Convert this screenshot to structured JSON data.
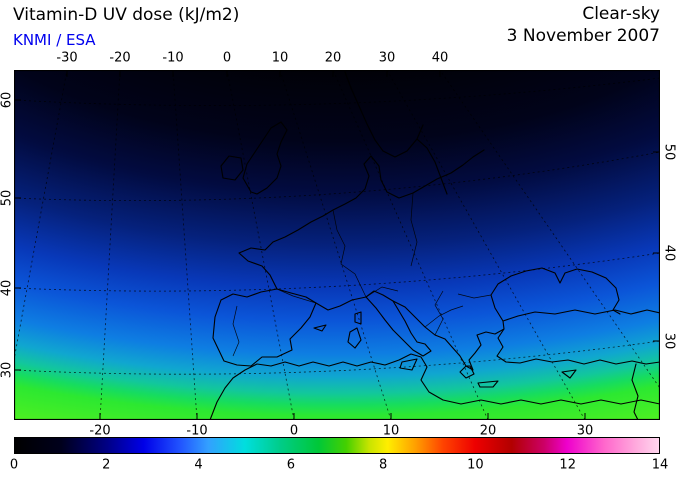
{
  "header": {
    "title": "Vitamin-D UV dose (kJ/m2)",
    "credit": "KNMI / ESA",
    "condition": "Clear-sky",
    "date": "3 November 2007"
  },
  "colors": {
    "credit_blue": "#0000ee",
    "text": "#000000",
    "background": "#ffffff"
  },
  "chart_data": {
    "type": "heatmap",
    "title": "Vitamin-D UV dose (kJ/m2)",
    "condition": "Clear-sky",
    "date": "3 November 2007",
    "source": "KNMI / ESA",
    "units": "kJ/m2",
    "region": "Europe and Mediterranean, approx. 30W-40E and 27N-72N",
    "colorbar": {
      "min": 0,
      "max": 14,
      "tick_labels": [
        "0",
        "2",
        "4",
        "6",
        "8",
        "10",
        "12",
        "14"
      ],
      "gradient_stops": [
        {
          "value": 0,
          "color": "#000000"
        },
        {
          "value": 1,
          "color": "#00001c"
        },
        {
          "value": 2,
          "color": "#000085"
        },
        {
          "value": 2.8,
          "color": "#0000e8"
        },
        {
          "value": 3.6,
          "color": "#2255ff"
        },
        {
          "value": 4.2,
          "color": "#33a0ff"
        },
        {
          "value": 5,
          "color": "#00dede"
        },
        {
          "value": 5.8,
          "color": "#00cc85"
        },
        {
          "value": 6.6,
          "color": "#00c838"
        },
        {
          "value": 7.2,
          "color": "#44d000"
        },
        {
          "value": 7.7,
          "color": "#c8e400"
        },
        {
          "value": 8.1,
          "color": "#ffee00"
        },
        {
          "value": 8.7,
          "color": "#ffa000"
        },
        {
          "value": 9.3,
          "color": "#ff4400"
        },
        {
          "value": 10,
          "color": "#ee0000"
        },
        {
          "value": 10.8,
          "color": "#b20000"
        },
        {
          "value": 11.5,
          "color": "#cc0066"
        },
        {
          "value": 12,
          "color": "#ee00cc"
        },
        {
          "value": 12.8,
          "color": "#ff66cc"
        },
        {
          "value": 13.5,
          "color": "#ffaadd"
        },
        {
          "value": 14,
          "color": "#ffd6ee"
        }
      ]
    },
    "map": {
      "lon_ticks_top": [
        "-30",
        "-20",
        "-10",
        "0",
        "10",
        "20",
        "30",
        "40"
      ],
      "lon_ticks_bottom": [
        "-20",
        "-10",
        "0",
        "10",
        "20",
        "30"
      ],
      "lat_ticks_left": [
        "60",
        "50",
        "40",
        "30"
      ],
      "lat_ticks_right": [
        "50",
        "40",
        "30"
      ],
      "approx_dose_by_latitude": [
        {
          "lat_deg_n": 65,
          "dose_kj_m2": 0.1
        },
        {
          "lat_deg_n": 55,
          "dose_kj_m2": 0.6
        },
        {
          "lat_deg_n": 48,
          "dose_kj_m2": 1.3
        },
        {
          "lat_deg_n": 42,
          "dose_kj_m2": 2.2
        },
        {
          "lat_deg_n": 36,
          "dose_kj_m2": 3.2
        },
        {
          "lat_deg_n": 31,
          "dose_kj_m2": 4.5
        },
        {
          "lat_deg_n": 28,
          "dose_kj_m2": 5.5
        }
      ],
      "field_gradient": [
        {
          "offset": 0.31,
          "color": "#010107"
        },
        {
          "offset": 0.44,
          "color": "#01031a"
        },
        {
          "offset": 0.53,
          "color": "#020b40"
        },
        {
          "offset": 0.625,
          "color": "#05217c"
        },
        {
          "offset": 0.7,
          "color": "#0838b8"
        },
        {
          "offset": 0.76,
          "color": "#0b55d8"
        },
        {
          "offset": 0.82,
          "color": "#0e7ee2"
        },
        {
          "offset": 0.86,
          "color": "#10a6d0"
        },
        {
          "offset": 0.89,
          "color": "#12c79c"
        },
        {
          "offset": 0.91,
          "color": "#16dc60"
        },
        {
          "offset": 0.93,
          "color": "#2ce831"
        },
        {
          "offset": 1.0,
          "color": "#55f21e"
        }
      ]
    }
  }
}
